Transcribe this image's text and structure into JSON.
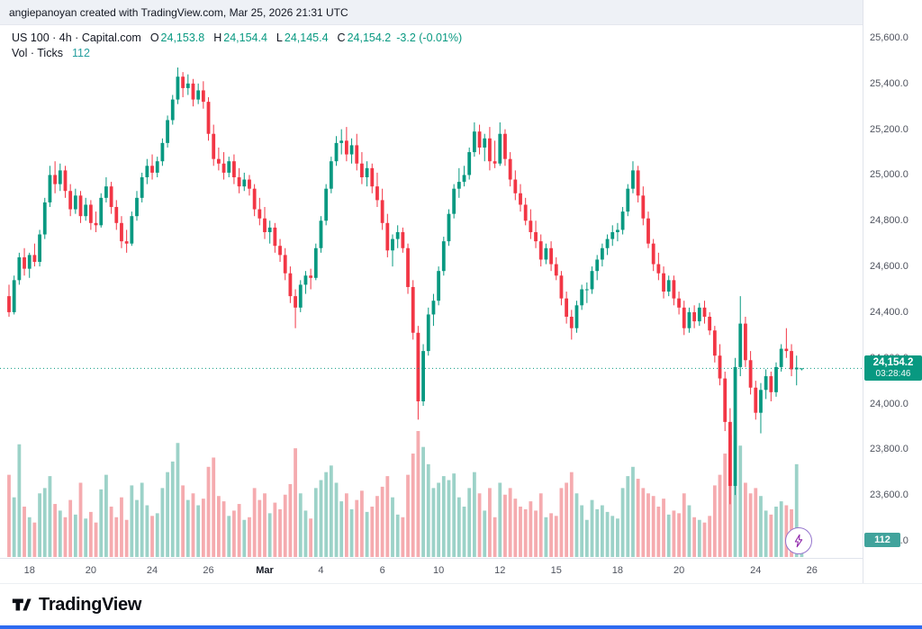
{
  "attribution": {
    "text": "angiepanoyan created with TradingView.com, Mar 25, 2026 21:31 UTC"
  },
  "legend": {
    "symbol_description": "US 100 · 4h · Capital.com",
    "ohlc": {
      "o_label": "O",
      "o_value": "24,153.8",
      "h_label": "H",
      "h_value": "24,154.4",
      "l_label": "L",
      "l_value": "24,145.4",
      "c_label": "C",
      "c_value": "24,154.2",
      "change": "-3.2 (-0.01%)"
    },
    "volume": {
      "label": "Vol · Ticks",
      "value": "112"
    }
  },
  "price_axis": {
    "labels": [
      "25,600.0",
      "25,400.0",
      "25,200.0",
      "25,000.0",
      "24,800.0",
      "24,600.0",
      "24,400.0",
      "24,200.0",
      "24,000.0",
      "23,800.0",
      "23,600.0",
      "23,400.0"
    ],
    "current": {
      "price": "24,154.2",
      "countdown": "03:28:46"
    },
    "volume_badge": "112"
  },
  "footer": {
    "brand": "TradingView"
  },
  "colors": {
    "up": "#089981",
    "down": "#f23645",
    "vol_up": "#9cd2c8",
    "vol_down": "#f5abaf",
    "price_badge": "#089981",
    "vol_badge": "#41a39c",
    "accent_blue": "#2e6bf0",
    "purple": "#8e24aa"
  },
  "chart_data": {
    "type": "candlestick+volume",
    "title": "US 100",
    "interval": "4h",
    "source": "Capital.com",
    "legend_position": "top-left",
    "grid": false,
    "y_axis": {
      "min": 23400,
      "max": 25600,
      "step": 200
    },
    "current_price": 24154.2,
    "x_ticks": [
      {
        "label": "18",
        "i": 4
      },
      {
        "label": "20",
        "i": 16
      },
      {
        "label": "24",
        "i": 28
      },
      {
        "label": "26",
        "i": 39
      },
      {
        "label": "Mar",
        "i": 50,
        "bold": true
      },
      {
        "label": "4",
        "i": 61
      },
      {
        "label": "6",
        "i": 73
      },
      {
        "label": "10",
        "i": 84
      },
      {
        "label": "12",
        "i": 96
      },
      {
        "label": "15",
        "i": 107
      },
      {
        "label": "18",
        "i": 119
      },
      {
        "label": "20",
        "i": 131
      },
      {
        "label": "24",
        "i": 146
      },
      {
        "label": "26",
        "i": 157
      }
    ],
    "candles_format": [
      "open",
      "high",
      "low",
      "close",
      "volume_ticks"
    ],
    "candles": [
      [
        24470,
        24520,
        24380,
        24400,
        620
      ],
      [
        24400,
        24560,
        24390,
        24540,
        450
      ],
      [
        24540,
        24660,
        24520,
        24640,
        850
      ],
      [
        24640,
        24680,
        24560,
        24590,
        380
      ],
      [
        24590,
        24660,
        24550,
        24650,
        300
      ],
      [
        24650,
        24700,
        24600,
        24620,
        260
      ],
      [
        24620,
        24760,
        24600,
        24740,
        480
      ],
      [
        24740,
        24900,
        24720,
        24880,
        520
      ],
      [
        24880,
        25040,
        24860,
        25000,
        610
      ],
      [
        25000,
        25060,
        24920,
        24960,
        400
      ],
      [
        24960,
        25050,
        24930,
        25020,
        350
      ],
      [
        25020,
        25040,
        24900,
        24930,
        300
      ],
      [
        24930,
        24960,
        24820,
        24850,
        430
      ],
      [
        24850,
        24940,
        24830,
        24910,
        320
      ],
      [
        24910,
        24930,
        24790,
        24820,
        560
      ],
      [
        24820,
        24900,
        24800,
        24870,
        290
      ],
      [
        24870,
        24890,
        24760,
        24790,
        340
      ],
      [
        24790,
        24840,
        24750,
        24780,
        260
      ],
      [
        24780,
        24920,
        24770,
        24900,
        510
      ],
      [
        24900,
        24990,
        24880,
        24950,
        620
      ],
      [
        24950,
        24970,
        24830,
        24860,
        380
      ],
      [
        24860,
        24890,
        24760,
        24790,
        300
      ],
      [
        24790,
        24820,
        24680,
        24710,
        450
      ],
      [
        24710,
        24760,
        24660,
        24700,
        280
      ],
      [
        24700,
        24840,
        24690,
        24820,
        540
      ],
      [
        24820,
        24930,
        24800,
        24900,
        430
      ],
      [
        24900,
        25010,
        24880,
        24990,
        560
      ],
      [
        24990,
        25070,
        24960,
        25040,
        390
      ],
      [
        25040,
        25090,
        24980,
        25010,
        310
      ],
      [
        25010,
        25080,
        24990,
        25060,
        330
      ],
      [
        25060,
        25160,
        25040,
        25140,
        520
      ],
      [
        25140,
        25260,
        25120,
        25240,
        640
      ],
      [
        25240,
        25350,
        25220,
        25330,
        720
      ],
      [
        25330,
        25470,
        25310,
        25430,
        860
      ],
      [
        25430,
        25450,
        25340,
        25380,
        540
      ],
      [
        25380,
        25440,
        25350,
        25400,
        430
      ],
      [
        25400,
        25420,
        25300,
        25330,
        480
      ],
      [
        25330,
        25400,
        25310,
        25370,
        390
      ],
      [
        25370,
        25410,
        25290,
        25320,
        440
      ],
      [
        25320,
        25340,
        25150,
        25180,
        680
      ],
      [
        25180,
        25220,
        25040,
        25070,
        750
      ],
      [
        25070,
        25120,
        25020,
        25050,
        460
      ],
      [
        25050,
        25100,
        24980,
        25010,
        420
      ],
      [
        25010,
        25080,
        24990,
        25060,
        310
      ],
      [
        25060,
        25090,
        24960,
        24990,
        350
      ],
      [
        24990,
        25030,
        24920,
        24950,
        400
      ],
      [
        24950,
        25010,
        24930,
        24980,
        280
      ],
      [
        24980,
        25000,
        24910,
        24940,
        300
      ],
      [
        24940,
        24960,
        24820,
        24850,
        520
      ],
      [
        24850,
        24900,
        24780,
        24810,
        430
      ],
      [
        24810,
        24860,
        24720,
        24750,
        480
      ],
      [
        24750,
        24800,
        24700,
        24770,
        330
      ],
      [
        24770,
        24790,
        24660,
        24690,
        410
      ],
      [
        24690,
        24720,
        24620,
        24650,
        360
      ],
      [
        24650,
        24680,
        24540,
        24570,
        470
      ],
      [
        24570,
        24600,
        24440,
        24470,
        550
      ],
      [
        24470,
        24500,
        24330,
        24420,
        820
      ],
      [
        24420,
        24540,
        24400,
        24520,
        480
      ],
      [
        24520,
        24580,
        24480,
        24560,
        350
      ],
      [
        24560,
        24590,
        24500,
        24550,
        290
      ],
      [
        24550,
        24700,
        24540,
        24680,
        520
      ],
      [
        24680,
        24820,
        24660,
        24800,
        580
      ],
      [
        24800,
        24960,
        24780,
        24940,
        640
      ],
      [
        24940,
        25080,
        24920,
        25060,
        690
      ],
      [
        25060,
        25170,
        25040,
        25140,
        560
      ],
      [
        25140,
        25200,
        25090,
        25150,
        420
      ],
      [
        25150,
        25210,
        25060,
        25090,
        480
      ],
      [
        25090,
        25160,
        25050,
        25130,
        360
      ],
      [
        25130,
        25180,
        25020,
        25050,
        430
      ],
      [
        25050,
        25100,
        24960,
        24990,
        500
      ],
      [
        24990,
        25060,
        24950,
        25030,
        340
      ],
      [
        25030,
        25050,
        24920,
        24950,
        380
      ],
      [
        24950,
        25010,
        24860,
        24890,
        460
      ],
      [
        24890,
        24940,
        24760,
        24790,
        530
      ],
      [
        24790,
        24830,
        24640,
        24670,
        610
      ],
      [
        24670,
        24740,
        24600,
        24720,
        450
      ],
      [
        24720,
        24780,
        24680,
        24750,
        320
      ],
      [
        24750,
        24770,
        24660,
        24680,
        300
      ],
      [
        24680,
        24700,
        24480,
        24510,
        620
      ],
      [
        24510,
        24540,
        24280,
        24310,
        780
      ],
      [
        24310,
        24340,
        23930,
        24010,
        950
      ],
      [
        24010,
        24260,
        23990,
        24230,
        830
      ],
      [
        24230,
        24420,
        24210,
        24390,
        700
      ],
      [
        24390,
        24480,
        24340,
        24450,
        520
      ],
      [
        24450,
        24600,
        24430,
        24580,
        560
      ],
      [
        24580,
        24730,
        24560,
        24710,
        610
      ],
      [
        24710,
        24850,
        24690,
        24830,
        580
      ],
      [
        24830,
        24960,
        24810,
        24940,
        630
      ],
      [
        24940,
        25030,
        24900,
        24970,
        450
      ],
      [
        24970,
        25040,
        24950,
        25000,
        380
      ],
      [
        25000,
        25120,
        24980,
        25100,
        520
      ],
      [
        25100,
        25230,
        25080,
        25190,
        640
      ],
      [
        25190,
        25220,
        25090,
        25120,
        480
      ],
      [
        25120,
        25180,
        25060,
        25160,
        350
      ],
      [
        25160,
        25210,
        25020,
        25060,
        520
      ],
      [
        25060,
        25150,
        25030,
        25050,
        300
      ],
      [
        25050,
        25230,
        25040,
        25180,
        560
      ],
      [
        25180,
        25200,
        25040,
        25070,
        470
      ],
      [
        25070,
        25100,
        24950,
        24980,
        520
      ],
      [
        24980,
        25020,
        24890,
        24920,
        440
      ],
      [
        24920,
        24960,
        24840,
        24870,
        380
      ],
      [
        24870,
        24900,
        24780,
        24800,
        360
      ],
      [
        24800,
        24850,
        24720,
        24750,
        420
      ],
      [
        24750,
        24800,
        24680,
        24710,
        350
      ],
      [
        24710,
        24740,
        24600,
        24630,
        480
      ],
      [
        24630,
        24700,
        24610,
        24680,
        300
      ],
      [
        24680,
        24710,
        24580,
        24610,
        330
      ],
      [
        24610,
        24640,
        24540,
        24560,
        310
      ],
      [
        24560,
        24580,
        24430,
        24460,
        520
      ],
      [
        24460,
        24490,
        24350,
        24380,
        560
      ],
      [
        24380,
        24410,
        24280,
        24330,
        640
      ],
      [
        24330,
        24450,
        24310,
        24430,
        480
      ],
      [
        24430,
        24520,
        24410,
        24500,
        390
      ],
      [
        24500,
        24530,
        24440,
        24500,
        280
      ],
      [
        24500,
        24600,
        24480,
        24580,
        430
      ],
      [
        24580,
        24650,
        24540,
        24630,
        360
      ],
      [
        24630,
        24700,
        24600,
        24680,
        390
      ],
      [
        24680,
        24740,
        24650,
        24720,
        340
      ],
      [
        24720,
        24780,
        24690,
        24750,
        310
      ],
      [
        24750,
        24790,
        24710,
        24760,
        290
      ],
      [
        24760,
        24860,
        24740,
        24840,
        520
      ],
      [
        24840,
        24960,
        24820,
        24940,
        610
      ],
      [
        24940,
        25060,
        24920,
        25020,
        680
      ],
      [
        25020,
        25040,
        24880,
        24910,
        590
      ],
      [
        24910,
        24950,
        24780,
        24810,
        520
      ],
      [
        24810,
        24840,
        24680,
        24700,
        480
      ],
      [
        24700,
        24720,
        24580,
        24610,
        460
      ],
      [
        24610,
        24660,
        24540,
        24570,
        380
      ],
      [
        24570,
        24600,
        24460,
        24490,
        440
      ],
      [
        24490,
        24560,
        24470,
        24540,
        320
      ],
      [
        24540,
        24560,
        24430,
        24460,
        350
      ],
      [
        24460,
        24490,
        24390,
        24420,
        330
      ],
      [
        24420,
        24450,
        24300,
        24330,
        480
      ],
      [
        24330,
        24420,
        24310,
        24400,
        390
      ],
      [
        24400,
        24430,
        24330,
        24360,
        300
      ],
      [
        24360,
        24440,
        24340,
        24420,
        280
      ],
      [
        24420,
        24450,
        24350,
        24380,
        260
      ],
      [
        24380,
        24400,
        24300,
        24320,
        310
      ],
      [
        24320,
        24340,
        24180,
        24210,
        540
      ],
      [
        24210,
        24260,
        24080,
        24110,
        620
      ],
      [
        24110,
        24140,
        23880,
        23920,
        780
      ],
      [
        23920,
        23980,
        23560,
        23640,
        920
      ],
      [
        23640,
        24200,
        23600,
        24160,
        880
      ],
      [
        24160,
        24470,
        24120,
        24350,
        840
      ],
      [
        24350,
        24380,
        24160,
        24190,
        560
      ],
      [
        24190,
        24230,
        24040,
        24070,
        480
      ],
      [
        24070,
        24100,
        23930,
        23960,
        520
      ],
      [
        23960,
        24090,
        23870,
        24060,
        460
      ],
      [
        24060,
        24150,
        24020,
        24120,
        350
      ],
      [
        24120,
        24140,
        24010,
        24050,
        320
      ],
      [
        24050,
        24180,
        24030,
        24160,
        380
      ],
      [
        24160,
        24260,
        24140,
        24240,
        420
      ],
      [
        24240,
        24330,
        24200,
        24230,
        390
      ],
      [
        24230,
        24260,
        24120,
        24150,
        360
      ],
      [
        24150,
        24210,
        24080,
        24157.4,
        700
      ],
      [
        24153.8,
        24154.4,
        24145.4,
        24154.2,
        112
      ]
    ]
  }
}
